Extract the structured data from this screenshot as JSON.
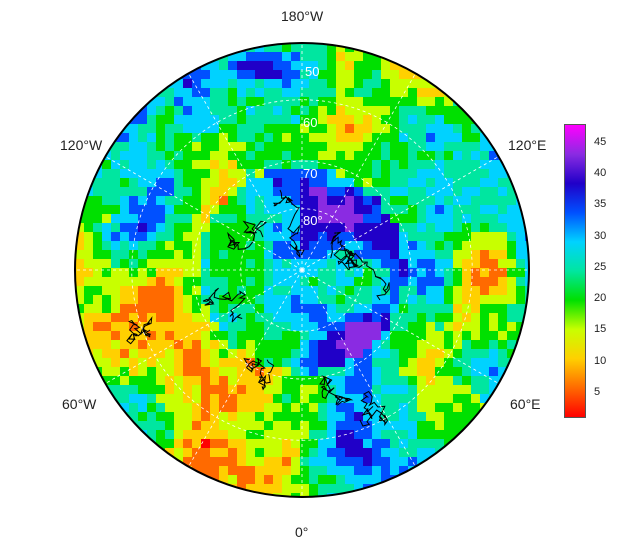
{
  "map": {
    "projection": "north polar stereographic",
    "lon_labels": {
      "top": "180°W",
      "upper_left": "120°W",
      "upper_right": "120°E",
      "lower_left": "60°W",
      "lower_right": "60°E",
      "bottom": "0°"
    },
    "lat_labels": [
      "50",
      "60",
      "70",
      "80°"
    ]
  },
  "colorbar": {
    "ticks": [
      "45",
      "40",
      "35",
      "30",
      "25",
      "20",
      "15",
      "10",
      "5"
    ],
    "range": [
      1,
      48
    ],
    "colors": [
      "#ff0000",
      "#ff6a00",
      "#ffd000",
      "#c8ff00",
      "#00e000",
      "#00e6a0",
      "#00d2ff",
      "#0050ff",
      "#2000c8",
      "#8a2be2",
      "#ff00ff"
    ]
  }
}
